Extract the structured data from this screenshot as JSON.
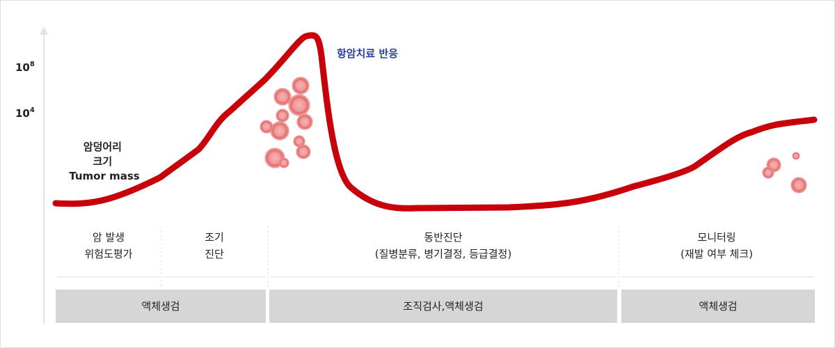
{
  "y_labels": [
    {
      "base": "10",
      "exp": "8"
    },
    {
      "base": "10",
      "exp": "4"
    }
  ],
  "curve_label": [
    "암덩어리",
    "크기",
    "Tumor mass"
  ],
  "response_label": "항암치료 반응",
  "stages": [
    {
      "lines": [
        "암 발생",
        "위험도평가"
      ]
    },
    {
      "lines": [
        "조기",
        "진단"
      ]
    },
    {
      "lines": [
        "동반진단",
        "(질병분류, 병기결정, 등급결정)"
      ]
    },
    {
      "lines": [
        "모니터링",
        "(재발 여부 체크)"
      ]
    }
  ],
  "tests": [
    "액체생검",
    "조직검사,액체생검",
    "액체생검"
  ]
}
